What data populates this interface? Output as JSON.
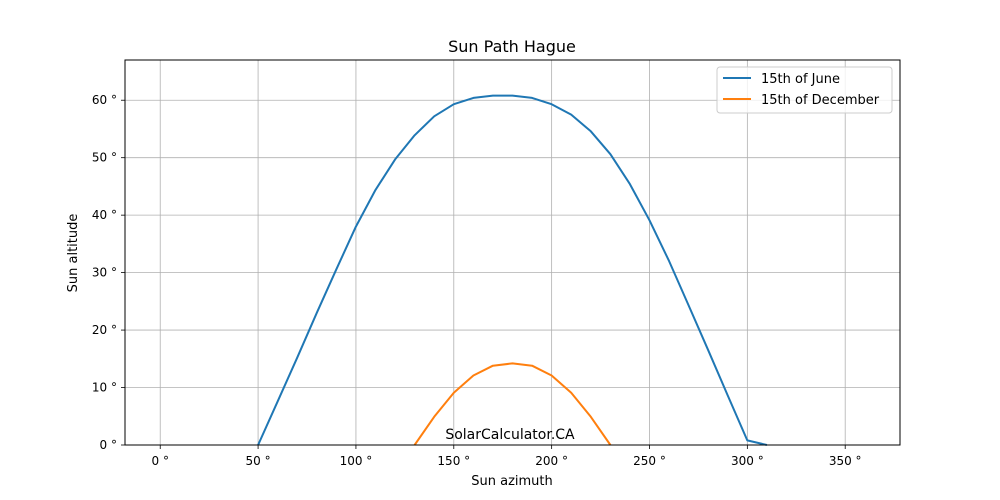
{
  "chart_data": {
    "type": "line",
    "title": "Sun Path Hague",
    "xlabel": "Sun azimuth",
    "ylabel": "Sun altitude",
    "xlim": [
      -18,
      378
    ],
    "ylim": [
      0,
      67
    ],
    "xticks": [
      0,
      50,
      100,
      150,
      200,
      250,
      300,
      350
    ],
    "xtick_labels": [
      "0 °",
      "50 °",
      "100 °",
      "150 °",
      "200 °",
      "250 °",
      "300 °",
      "350 °"
    ],
    "yticks": [
      0,
      10,
      20,
      30,
      40,
      50,
      60
    ],
    "ytick_labels": [
      "0 °",
      "10 °",
      "20 °",
      "30 °",
      "40 °",
      "50 °",
      "60 °"
    ],
    "grid": true,
    "legend_position": "top-right",
    "annotation": "SolarCalculator.CA",
    "series": [
      {
        "name": "15th of June",
        "color": "#1f77b4",
        "x": [
          50,
          60,
          70,
          80,
          90,
          100,
          110,
          120,
          130,
          140,
          150,
          160,
          170,
          180,
          190,
          200,
          210,
          220,
          230,
          240,
          250,
          260,
          270,
          280,
          290,
          300,
          310
        ],
        "y": [
          0,
          7.6,
          15.2,
          23,
          30.6,
          38,
          44.4,
          49.7,
          53.9,
          57.2,
          59.3,
          60.4,
          60.8,
          60.8,
          60.4,
          59.3,
          57.5,
          54.6,
          50.6,
          45.4,
          39.1,
          32,
          24.3,
          16.5,
          8.6,
          0.8,
          0
        ]
      },
      {
        "name": "15th of December",
        "color": "#ff7f0e",
        "x": [
          130,
          140,
          150,
          160,
          170,
          180,
          190,
          200,
          210,
          220,
          230
        ],
        "y": [
          0,
          4.9,
          9.1,
          12.1,
          13.8,
          14.2,
          13.8,
          12.1,
          9.1,
          4.9,
          0
        ]
      }
    ]
  }
}
